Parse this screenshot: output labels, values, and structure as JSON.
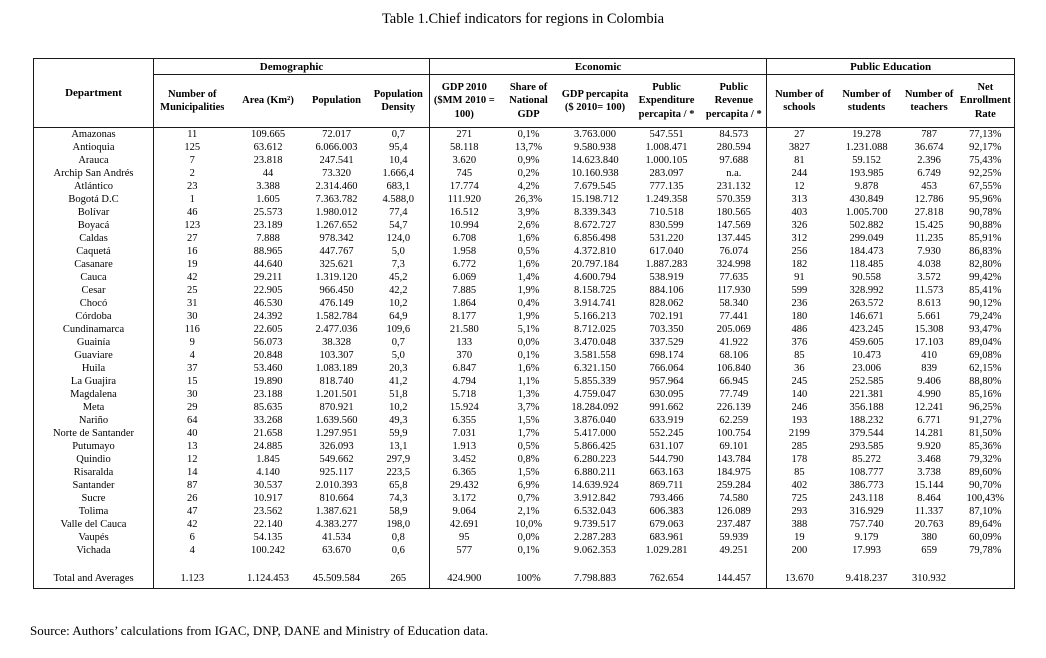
{
  "title": "Table 1.Chief indicators for regions in Colombia",
  "source": "Source: Authors’ calculations from IGAC, DNP, DANE and Ministry of Education data.",
  "table": {
    "department_header": "Department",
    "groups": [
      {
        "label": "Demographic",
        "colspan": 4
      },
      {
        "label": "Economic",
        "colspan": 5
      },
      {
        "label": "Public Education",
        "colspan": 4
      }
    ],
    "columns": [
      "Number of Municipalities",
      "Area (Km²)",
      "Population",
      "Population Density",
      "GDP 2010 ($MM 2010 = 100)",
      "Share of National GDP",
      "GDP percapita ($ 2010= 100)",
      "Public Expenditure percapita  / *",
      "Public Revenue percapita  / *",
      "Number of schools",
      "Number of students",
      "Number of teachers",
      "Net Enrollment Rate"
    ],
    "rows": [
      {
        "department": "Amazonas",
        "values": [
          "11",
          "109.665",
          "72.017",
          "0,7",
          "271",
          "0,1%",
          "3.763.000",
          "547.551",
          "84.573",
          "27",
          "19.278",
          "787",
          "77,13%"
        ]
      },
      {
        "department": "Antioquia",
        "values": [
          "125",
          "63.612",
          "6.066.003",
          "95,4",
          "58.118",
          "13,7%",
          "9.580.938",
          "1.008.471",
          "280.594",
          "3827",
          "1.231.088",
          "36.674",
          "92,17%"
        ]
      },
      {
        "department": "Arauca",
        "values": [
          "7",
          "23.818",
          "247.541",
          "10,4",
          "3.620",
          "0,9%",
          "14.623.840",
          "1.000.105",
          "97.688",
          "81",
          "59.152",
          "2.396",
          "75,43%"
        ]
      },
      {
        "department": "Archip San Andrés",
        "values": [
          "2",
          "44",
          "73.320",
          "1.666,4",
          "745",
          "0,2%",
          "10.160.938",
          "283.097",
          "n.a.",
          "244",
          "193.985",
          "6.749",
          "92,25%"
        ]
      },
      {
        "department": "Atlántico",
        "values": [
          "23",
          "3.388",
          "2.314.460",
          "683,1",
          "17.774",
          "4,2%",
          "7.679.545",
          "777.135",
          "231.132",
          "12",
          "9.878",
          "453",
          "67,55%"
        ]
      },
      {
        "department": "Bogotá D.C",
        "values": [
          "1",
          "1.605",
          "7.363.782",
          "4.588,0",
          "111.920",
          "26,3%",
          "15.198.712",
          "1.249.358",
          "570.359",
          "313",
          "430.849",
          "12.786",
          "95,96%"
        ]
      },
      {
        "department": "Bolívar",
        "values": [
          "46",
          "25.573",
          "1.980.012",
          "77,4",
          "16.512",
          "3,9%",
          "8.339.343",
          "710.518",
          "180.565",
          "403",
          "1.005.700",
          "27.818",
          "90,78%"
        ]
      },
      {
        "department": "Boyacá",
        "values": [
          "123",
          "23.189",
          "1.267.652",
          "54,7",
          "10.994",
          "2,6%",
          "8.672.727",
          "830.599",
          "147.569",
          "326",
          "502.882",
          "15.425",
          "90,88%"
        ]
      },
      {
        "department": "Caldas",
        "values": [
          "27",
          "7.888",
          "978.342",
          "124,0",
          "6.708",
          "1,6%",
          "6.856.498",
          "531.220",
          "137.445",
          "312",
          "299.049",
          "11.235",
          "85,91%"
        ]
      },
      {
        "department": "Caquetá",
        "values": [
          "16",
          "88.965",
          "447.767",
          "5,0",
          "1.958",
          "0,5%",
          "4.372.810",
          "617.040",
          "76.074",
          "256",
          "184.473",
          "7.930",
          "86,83%"
        ]
      },
      {
        "department": "Casanare",
        "values": [
          "19",
          "44.640",
          "325.621",
          "7,3",
          "6.772",
          "1,6%",
          "20.797.184",
          "1.887.283",
          "324.998",
          "182",
          "118.485",
          "4.038",
          "82,80%"
        ]
      },
      {
        "department": "Cauca",
        "values": [
          "42",
          "29.211",
          "1.319.120",
          "45,2",
          "6.069",
          "1,4%",
          "4.600.794",
          "538.919",
          "77.635",
          "91",
          "90.558",
          "3.572",
          "99,42%"
        ]
      },
      {
        "department": "Cesar",
        "values": [
          "25",
          "22.905",
          "966.450",
          "42,2",
          "7.885",
          "1,9%",
          "8.158.725",
          "884.106",
          "117.930",
          "599",
          "328.992",
          "11.573",
          "85,41%"
        ]
      },
      {
        "department": "Chocó",
        "values": [
          "31",
          "46.530",
          "476.149",
          "10,2",
          "1.864",
          "0,4%",
          "3.914.741",
          "828.062",
          "58.340",
          "236",
          "263.572",
          "8.613",
          "90,12%"
        ]
      },
      {
        "department": "Córdoba",
        "values": [
          "30",
          "24.392",
          "1.582.784",
          "64,9",
          "8.177",
          "1,9%",
          "5.166.213",
          "702.191",
          "77.441",
          "180",
          "146.671",
          "5.661",
          "79,24%"
        ]
      },
      {
        "department": "Cundinamarca",
        "values": [
          "116",
          "22.605",
          "2.477.036",
          "109,6",
          "21.580",
          "5,1%",
          "8.712.025",
          "703.350",
          "205.069",
          "486",
          "423.245",
          "15.308",
          "93,47%"
        ]
      },
      {
        "department": "Guainía",
        "values": [
          "9",
          "56.073",
          "38.328",
          "0,7",
          "133",
          "0,0%",
          "3.470.048",
          "337.529",
          "41.922",
          "376",
          "459.605",
          "17.103",
          "89,04%"
        ]
      },
      {
        "department": "Guaviare",
        "values": [
          "4",
          "20.848",
          "103.307",
          "5,0",
          "370",
          "0,1%",
          "3.581.558",
          "698.174",
          "68.106",
          "85",
          "10.473",
          "410",
          "69,08%"
        ]
      },
      {
        "department": "Huila",
        "values": [
          "37",
          "53.460",
          "1.083.189",
          "20,3",
          "6.847",
          "1,6%",
          "6.321.150",
          "766.064",
          "106.840",
          "36",
          "23.006",
          "839",
          "62,15%"
        ]
      },
      {
        "department": "La Guajira",
        "values": [
          "15",
          "19.890",
          "818.740",
          "41,2",
          "4.794",
          "1,1%",
          "5.855.339",
          "957.964",
          "66.945",
          "245",
          "252.585",
          "9.406",
          "88,80%"
        ]
      },
      {
        "department": "Magdalena",
        "values": [
          "30",
          "23.188",
          "1.201.501",
          "51,8",
          "5.718",
          "1,3%",
          "4.759.047",
          "630.095",
          "77.749",
          "140",
          "221.381",
          "4.990",
          "85,16%"
        ]
      },
      {
        "department": "Meta",
        "values": [
          "29",
          "85.635",
          "870.921",
          "10,2",
          "15.924",
          "3,7%",
          "18.284.092",
          "991.662",
          "226.139",
          "246",
          "356.188",
          "12.241",
          "96,25%"
        ]
      },
      {
        "department": "Nariño",
        "values": [
          "64",
          "33.268",
          "1.639.560",
          "49,3",
          "6.355",
          "1,5%",
          "3.876.040",
          "633.919",
          "62.259",
          "193",
          "188.232",
          "6.771",
          "91,27%"
        ]
      },
      {
        "department": "Norte de Santander",
        "values": [
          "40",
          "21.658",
          "1.297.951",
          "59,9",
          "7.031",
          "1,7%",
          "5.417.000",
          "552.245",
          "100.754",
          "2199",
          "379.544",
          "14.281",
          "81,50%"
        ]
      },
      {
        "department": "Putumayo",
        "values": [
          "13",
          "24.885",
          "326.093",
          "13,1",
          "1.913",
          "0,5%",
          "5.866.425",
          "631.107",
          "69.101",
          "285",
          "293.585",
          "9.920",
          "85,36%"
        ]
      },
      {
        "department": "Quindio",
        "values": [
          "12",
          "1.845",
          "549.662",
          "297,9",
          "3.452",
          "0,8%",
          "6.280.223",
          "544.790",
          "143.784",
          "178",
          "85.272",
          "3.468",
          "79,32%"
        ]
      },
      {
        "department": "Risaralda",
        "values": [
          "14",
          "4.140",
          "925.117",
          "223,5",
          "6.365",
          "1,5%",
          "6.880.211",
          "663.163",
          "184.975",
          "85",
          "108.777",
          "3.738",
          "89,60%"
        ]
      },
      {
        "department": "Santander",
        "values": [
          "87",
          "30.537",
          "2.010.393",
          "65,8",
          "29.432",
          "6,9%",
          "14.639.924",
          "869.711",
          "259.284",
          "402",
          "386.773",
          "15.144",
          "90,70%"
        ]
      },
      {
        "department": "Sucre",
        "values": [
          "26",
          "10.917",
          "810.664",
          "74,3",
          "3.172",
          "0,7%",
          "3.912.842",
          "793.466",
          "74.580",
          "725",
          "243.118",
          "8.464",
          "100,43%"
        ]
      },
      {
        "department": "Tolima",
        "values": [
          "47",
          "23.562",
          "1.387.621",
          "58,9",
          "9.064",
          "2,1%",
          "6.532.043",
          "606.383",
          "126.089",
          "293",
          "316.929",
          "11.337",
          "87,10%"
        ]
      },
      {
        "department": "Valle del Cauca",
        "values": [
          "42",
          "22.140",
          "4.383.277",
          "198,0",
          "42.691",
          "10,0%",
          "9.739.517",
          "679.063",
          "237.487",
          "388",
          "757.740",
          "20.763",
          "89,64%"
        ]
      },
      {
        "department": "Vaupés",
        "values": [
          "6",
          "54.135",
          "41.534",
          "0,8",
          "95",
          "0,0%",
          "2.287.283",
          "683.961",
          "59.939",
          "19",
          "9.179",
          "380",
          "60,09%"
        ]
      },
      {
        "department": "Vichada",
        "values": [
          "4",
          "100.242",
          "63.670",
          "0,6",
          "577",
          "0,1%",
          "9.062.353",
          "1.029.281",
          "49.251",
          "200",
          "17.993",
          "659",
          "79,78%"
        ]
      }
    ],
    "total_row": {
      "department": "Total and Averages",
      "values": [
        "1.123",
        "1.124.453",
        "45.509.584",
        "265",
        "424.900",
        "100%",
        "7.798.883",
        "762.654",
        "144.457",
        "13.670",
        "9.418.237",
        "310.932",
        ""
      ]
    }
  }
}
